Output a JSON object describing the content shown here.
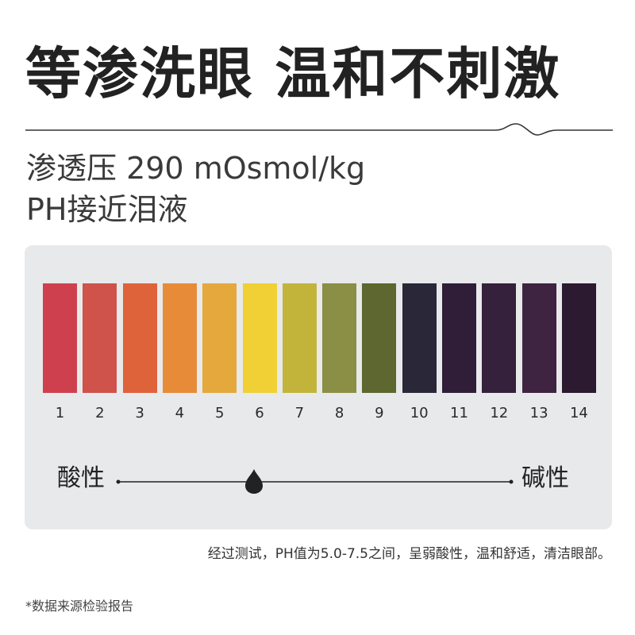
{
  "title": "等渗洗眼 温和不刺激",
  "subtitle_line1": "渗透压 290 mOsmol/kg",
  "subtitle_line2": "PH接近泪液",
  "ph_scale": {
    "levels": [
      {
        "label": "1",
        "color": "#cf404f"
      },
      {
        "label": "2",
        "color": "#cf524b"
      },
      {
        "label": "3",
        "color": "#de633a"
      },
      {
        "label": "4",
        "color": "#e78b39"
      },
      {
        "label": "5",
        "color": "#e5a83c"
      },
      {
        "label": "6",
        "color": "#f0d034"
      },
      {
        "label": "7",
        "color": "#c2b43a"
      },
      {
        "label": "8",
        "color": "#8b8e45"
      },
      {
        "label": "9",
        "color": "#5d672f"
      },
      {
        "label": "10",
        "color": "#2a2838"
      },
      {
        "label": "11",
        "color": "#301e38"
      },
      {
        "label": "12",
        "color": "#35213b"
      },
      {
        "label": "13",
        "color": "#3e2440"
      },
      {
        "label": "14",
        "color": "#2c1a30"
      }
    ],
    "acid_label": "酸性",
    "base_label": "碱性",
    "marker_icon": "water-drop-icon",
    "marker_position_ph": 6
  },
  "note": "经过测试，PH值为5.0-7.5之间，呈弱酸性，温和舒适，清洁眼部。",
  "footnote": "*数据来源检验报告"
}
